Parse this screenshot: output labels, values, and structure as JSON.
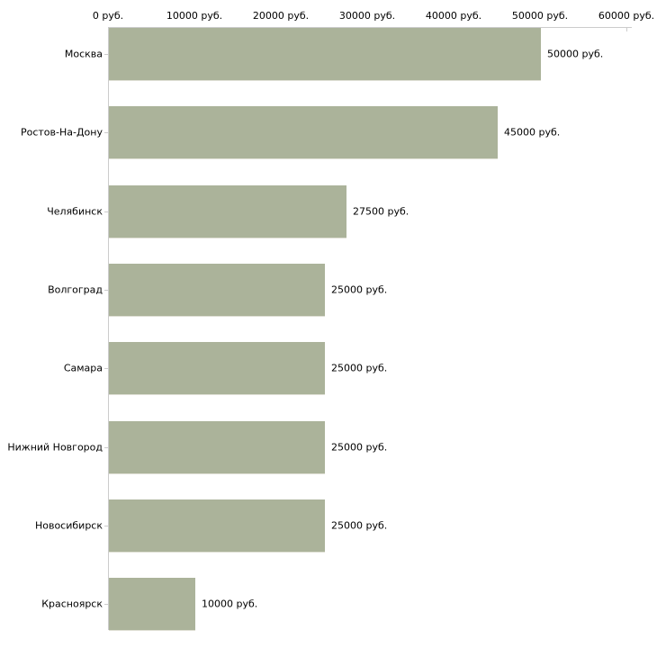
{
  "chart_data": {
    "type": "bar",
    "orientation": "horizontal",
    "title": "",
    "xlabel": "",
    "ylabel": "",
    "xlim": [
      0,
      60000
    ],
    "grid": false,
    "legend": false,
    "x_ticks": [
      {
        "value": 0,
        "label": "0 руб."
      },
      {
        "value": 10000,
        "label": "10000 руб."
      },
      {
        "value": 20000,
        "label": "20000 руб."
      },
      {
        "value": 30000,
        "label": "30000 руб."
      },
      {
        "value": 40000,
        "label": "40000 руб."
      },
      {
        "value": 50000,
        "label": "50000 руб."
      },
      {
        "value": 60000,
        "label": "60000 руб."
      }
    ],
    "categories": [
      "Москва",
      "Ростов-На-Дону",
      "Челябинск",
      "Волгоград",
      "Самара",
      "Нижний Новгород",
      "Новосибирск",
      "Красноярск"
    ],
    "values": [
      50000,
      45000,
      27500,
      25000,
      25000,
      25000,
      25000,
      10000
    ],
    "value_labels": [
      "50000 руб.",
      "45000 руб.",
      "27500 руб.",
      "25000 руб.",
      "25000 руб.",
      "25000 руб.",
      "25000 руб.",
      "10000 руб."
    ],
    "colors": {
      "bar": "#abb39a",
      "bar_bottom_edge": "#e0e0d6",
      "axis": "#cccccc",
      "text": "#000000",
      "background": "#ffffff"
    }
  }
}
